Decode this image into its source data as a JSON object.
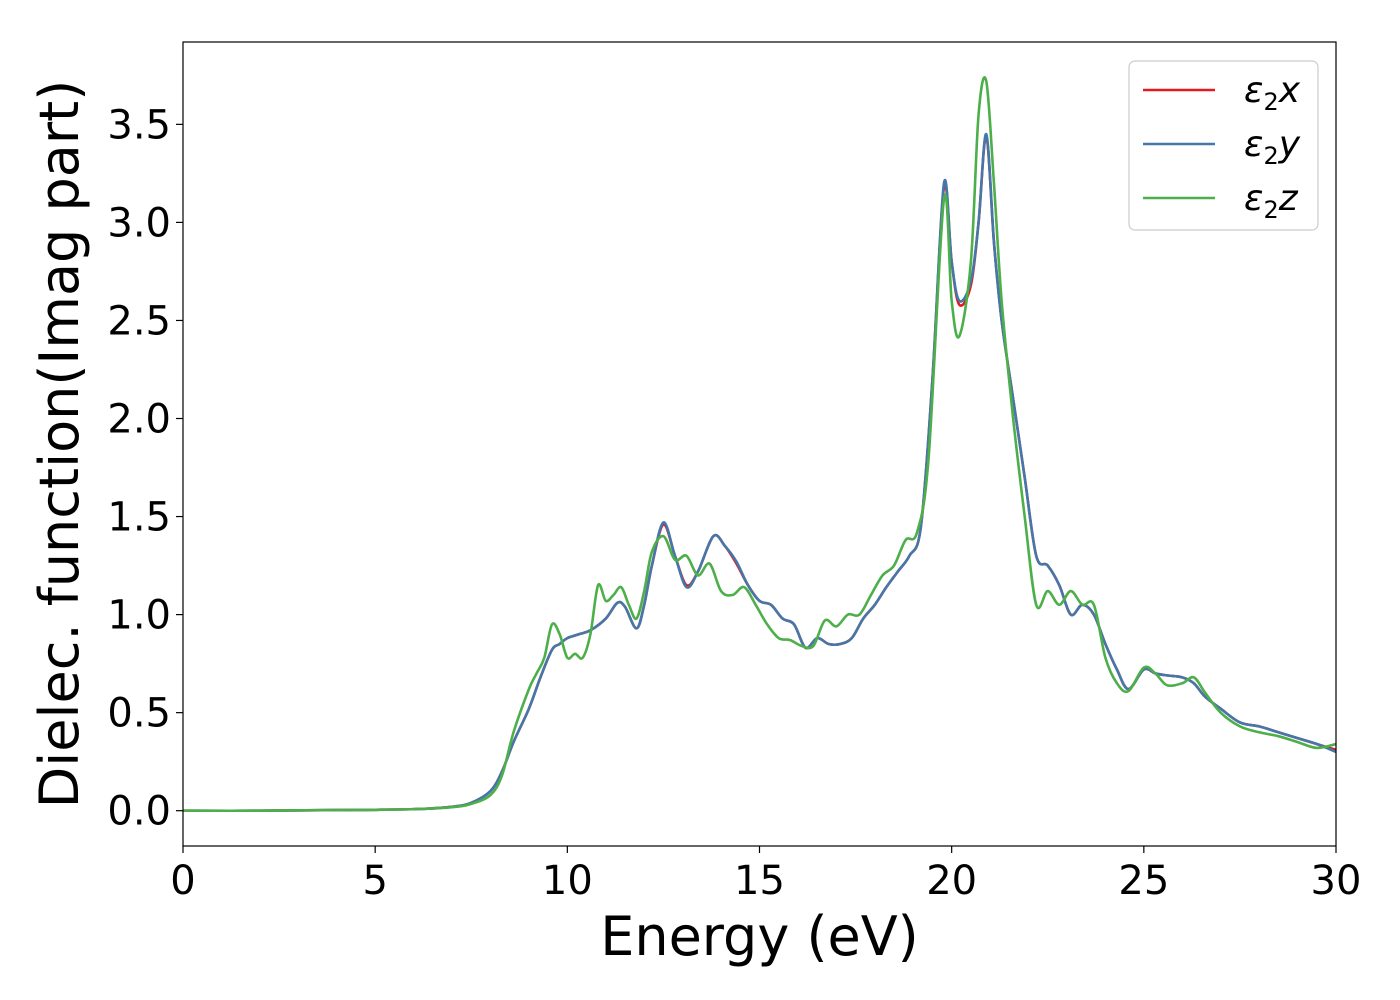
{
  "chart_data": {
    "type": "line",
    "title": "",
    "xlabel": "Energy (eV)",
    "ylabel": "Dielec. function(Imag part)",
    "xlim": [
      0,
      30
    ],
    "ylim": [
      -0.18,
      3.92
    ],
    "xticks": [
      0,
      5,
      10,
      15,
      20,
      25,
      30
    ],
    "xtick_labels": [
      "0",
      "5",
      "10",
      "15",
      "20",
      "25",
      "30"
    ],
    "yticks": [
      0.0,
      0.5,
      1.0,
      1.5,
      2.0,
      2.5,
      3.0,
      3.5
    ],
    "ytick_labels": [
      "0.0",
      "0.5",
      "1.0",
      "1.5",
      "2.0",
      "2.5",
      "3.0",
      "3.5"
    ],
    "grid": false,
    "legend_position": "top-right",
    "series": [
      {
        "name": "ε₂x",
        "legend_base": "ε",
        "legend_sub": "2",
        "legend_suffix": "x",
        "color": "#e41a1c",
        "x": [
          0,
          2,
          4,
          6,
          7,
          7.5,
          8,
          8.3,
          8.6,
          9,
          9.3,
          9.6,
          9.8,
          10,
          10.3,
          10.6,
          11,
          11.3,
          11.5,
          11.8,
          12,
          12.2,
          12.5,
          12.8,
          13.1,
          13.4,
          13.8,
          14.1,
          14.4,
          14.7,
          15,
          15.3,
          15.6,
          15.9,
          16.2,
          16.5,
          16.8,
          17.1,
          17.4,
          17.7,
          18,
          18.3,
          18.6,
          18.9,
          19.2,
          19.5,
          19.8,
          20.0,
          20.2,
          20.5,
          20.7,
          20.9,
          21.1,
          21.3,
          21.6,
          21.9,
          22.2,
          22.5,
          22.8,
          23.1,
          23.4,
          23.7,
          24.0,
          24.3,
          24.6,
          25.0,
          25.3,
          25.6,
          26.0,
          26.3,
          26.6,
          27.0,
          27.5,
          28,
          28.5,
          29,
          29.5,
          30
        ],
        "y": [
          0.0,
          0.0,
          0.003,
          0.008,
          0.02,
          0.04,
          0.1,
          0.2,
          0.35,
          0.52,
          0.68,
          0.82,
          0.85,
          0.88,
          0.9,
          0.92,
          0.98,
          1.06,
          1.04,
          0.93,
          1.05,
          1.25,
          1.46,
          1.3,
          1.15,
          1.22,
          1.4,
          1.35,
          1.26,
          1.15,
          1.07,
          1.05,
          0.98,
          0.95,
          0.83,
          0.88,
          0.85,
          0.85,
          0.88,
          0.98,
          1.05,
          1.14,
          1.22,
          1.3,
          1.45,
          2.2,
          3.18,
          2.8,
          2.58,
          2.68,
          3.0,
          3.44,
          2.9,
          2.5,
          2.1,
          1.7,
          1.3,
          1.25,
          1.15,
          1.0,
          1.05,
          1.0,
          0.85,
          0.72,
          0.62,
          0.72,
          0.7,
          0.69,
          0.68,
          0.65,
          0.58,
          0.52,
          0.45,
          0.43,
          0.4,
          0.37,
          0.34,
          0.31
        ]
      },
      {
        "name": "ε₂y",
        "legend_base": "ε",
        "legend_sub": "2",
        "legend_suffix": "y",
        "color": "#4477aa",
        "x": [
          0,
          2,
          4,
          6,
          7,
          7.5,
          8,
          8.3,
          8.6,
          9,
          9.3,
          9.6,
          9.8,
          10,
          10.3,
          10.6,
          11,
          11.3,
          11.5,
          11.8,
          12,
          12.2,
          12.5,
          12.8,
          13.1,
          13.4,
          13.8,
          14.1,
          14.4,
          14.7,
          15,
          15.3,
          15.6,
          15.9,
          16.2,
          16.5,
          16.8,
          17.1,
          17.4,
          17.7,
          18,
          18.3,
          18.6,
          18.9,
          19.2,
          19.5,
          19.8,
          20.0,
          20.2,
          20.5,
          20.7,
          20.9,
          21.1,
          21.3,
          21.6,
          21.9,
          22.2,
          22.5,
          22.8,
          23.1,
          23.4,
          23.7,
          24.0,
          24.3,
          24.6,
          25.0,
          25.3,
          25.6,
          26.0,
          26.3,
          26.6,
          27.0,
          27.5,
          28,
          28.5,
          29,
          29.5,
          30
        ],
        "y": [
          0.0,
          0.0,
          0.003,
          0.008,
          0.02,
          0.04,
          0.1,
          0.2,
          0.35,
          0.52,
          0.68,
          0.82,
          0.85,
          0.88,
          0.9,
          0.92,
          0.98,
          1.06,
          1.04,
          0.93,
          1.05,
          1.25,
          1.47,
          1.3,
          1.14,
          1.22,
          1.4,
          1.35,
          1.27,
          1.15,
          1.07,
          1.05,
          0.98,
          0.95,
          0.83,
          0.88,
          0.85,
          0.85,
          0.88,
          0.98,
          1.05,
          1.14,
          1.22,
          1.3,
          1.45,
          2.2,
          3.2,
          2.8,
          2.6,
          2.7,
          3.0,
          3.45,
          2.9,
          2.5,
          2.1,
          1.7,
          1.3,
          1.25,
          1.15,
          1.0,
          1.05,
          1.0,
          0.85,
          0.72,
          0.62,
          0.72,
          0.7,
          0.69,
          0.68,
          0.65,
          0.58,
          0.52,
          0.45,
          0.43,
          0.4,
          0.37,
          0.34,
          0.3
        ]
      },
      {
        "name": "ε₂z",
        "legend_base": "ε",
        "legend_sub": "2",
        "legend_suffix": "z",
        "color": "#4daf4a",
        "x": [
          0,
          2,
          4,
          6,
          7,
          7.5,
          8,
          8.3,
          8.6,
          9,
          9.2,
          9.4,
          9.6,
          9.8,
          10,
          10.2,
          10.4,
          10.6,
          10.8,
          11,
          11.2,
          11.4,
          11.6,
          11.8,
          12,
          12.2,
          12.5,
          12.8,
          13.1,
          13.4,
          13.7,
          14.0,
          14.3,
          14.6,
          14.9,
          15.2,
          15.5,
          15.8,
          16.1,
          16.4,
          16.7,
          17.0,
          17.3,
          17.6,
          17.9,
          18.2,
          18.5,
          18.8,
          19.1,
          19.4,
          19.8,
          20.0,
          20.2,
          20.5,
          20.7,
          20.9,
          21.1,
          21.3,
          21.6,
          21.9,
          22.2,
          22.5,
          22.8,
          23.1,
          23.4,
          23.7,
          24.0,
          24.3,
          24.6,
          25.0,
          25.3,
          25.6,
          26.0,
          26.3,
          26.6,
          27.0,
          27.5,
          28,
          28.5,
          29,
          29.5,
          30
        ],
        "y": [
          0.0,
          0.0,
          0.003,
          0.008,
          0.018,
          0.035,
          0.08,
          0.18,
          0.4,
          0.62,
          0.7,
          0.78,
          0.95,
          0.9,
          0.78,
          0.8,
          0.78,
          0.9,
          1.15,
          1.07,
          1.1,
          1.14,
          1.05,
          0.98,
          1.12,
          1.32,
          1.4,
          1.28,
          1.3,
          1.2,
          1.26,
          1.12,
          1.1,
          1.14,
          1.05,
          0.95,
          0.88,
          0.87,
          0.84,
          0.84,
          0.97,
          0.94,
          1.0,
          1.0,
          1.1,
          1.2,
          1.25,
          1.38,
          1.42,
          1.8,
          3.12,
          2.6,
          2.42,
          2.8,
          3.55,
          3.72,
          3.2,
          2.6,
          2.0,
          1.5,
          1.05,
          1.12,
          1.05,
          1.12,
          1.05,
          1.05,
          0.78,
          0.65,
          0.61,
          0.73,
          0.7,
          0.64,
          0.65,
          0.68,
          0.6,
          0.5,
          0.43,
          0.4,
          0.38,
          0.35,
          0.32,
          0.34
        ]
      }
    ]
  }
}
